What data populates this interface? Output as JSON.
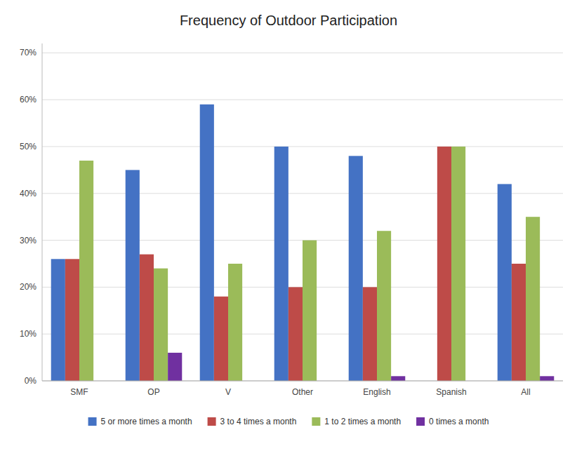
{
  "chart_data": {
    "type": "bar",
    "title": "Frequency of Outdoor Participation",
    "categories": [
      "SMF",
      "OP",
      "V",
      "Other",
      "English",
      "Spanish",
      "All"
    ],
    "series": [
      {
        "name": "5 or more times a month",
        "color": "#4472C4",
        "values": [
          26,
          45,
          59,
          50,
          48,
          0,
          42
        ]
      },
      {
        "name": "3 to 4 times a month",
        "color": "#BE4B48",
        "values": [
          26,
          27,
          18,
          20,
          20,
          50,
          25
        ]
      },
      {
        "name": "1 to 2 times a month",
        "color": "#9BBB59",
        "values": [
          47,
          24,
          25,
          30,
          32,
          50,
          35
        ]
      },
      {
        "name": "0 times a month",
        "color": "#7030A0",
        "values": [
          0,
          6,
          0,
          0,
          1,
          0,
          1
        ]
      }
    ],
    "ylim": [
      0,
      72
    ],
    "yticks": [
      {
        "value": 0,
        "label": "0%"
      },
      {
        "value": 10,
        "label": "10%"
      },
      {
        "value": 20,
        "label": "20%"
      },
      {
        "value": 30,
        "label": "30%"
      },
      {
        "value": 40,
        "label": "40%"
      },
      {
        "value": 50,
        "label": "50%"
      },
      {
        "value": 60,
        "label": "60%"
      },
      {
        "value": 70,
        "label": "70%"
      }
    ],
    "grid": true,
    "legend": "bottom"
  }
}
